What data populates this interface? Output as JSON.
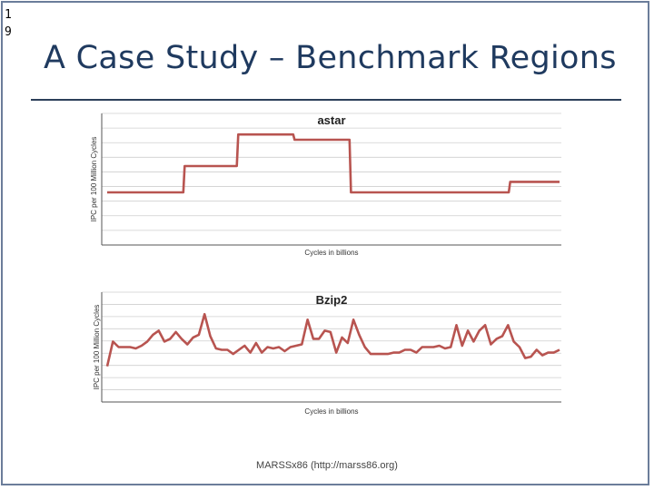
{
  "slide": {
    "number": "19",
    "title": "A Case Study – Benchmark Regions",
    "source": "MARSSx86 (http://marss86.org)"
  },
  "colors": {
    "series": "#b85450",
    "grid": "#cfcfcf",
    "axis": "#555555",
    "frame": "#6b7d9a",
    "title": "#1f3a5f"
  },
  "chart_data": [
    {
      "type": "line",
      "title": "astar",
      "xlabel": "Cycles in billions",
      "ylabel": "IPC per 100 Million Cycles",
      "grid": true,
      "legend": "none",
      "series": [
        {
          "values": [
            2.0,
            2.0,
            2.0,
            2.0,
            2.0,
            2.0,
            2.0,
            2.0,
            2.0,
            2.0,
            2.0,
            2.0,
            2.0,
            2.0,
            2.0,
            2.0,
            2.0,
            2.0,
            2.0,
            2.0,
            2.0,
            2.0,
            2.0,
            2.0,
            2.0,
            2.0,
            2.0,
            2.0,
            2.0,
            2.0,
            2.0,
            2.0,
            2.0,
            2.0,
            2.0,
            2.0,
            2.0,
            2.0,
            2.0,
            2.0,
            2.0,
            2.0,
            2.0,
            2.0,
            2.0,
            2.0,
            2.0,
            2.0,
            2.0,
            2.0,
            2.0,
            2.0,
            2.0,
            2.0,
            2.0,
            3.0,
            3.0,
            3.0,
            3.0,
            3.0,
            3.0,
            3.0,
            3.0,
            3.0,
            3.0,
            3.0,
            3.0,
            3.0,
            3.0,
            3.0,
            3.0,
            3.0,
            3.0,
            3.0,
            3.0,
            3.0,
            3.0,
            3.0,
            3.0,
            3.0,
            3.0,
            3.0,
            3.0,
            3.0,
            3.0,
            3.0,
            3.0,
            3.0,
            3.0,
            3.0,
            3.0,
            3.0,
            3.0,
            4.2,
            4.2,
            4.2,
            4.2,
            4.2,
            4.2,
            4.2,
            4.2,
            4.2,
            4.2,
            4.2,
            4.2,
            4.2,
            4.2,
            4.2,
            4.2,
            4.2,
            4.2,
            4.2,
            4.2,
            4.2,
            4.2,
            4.2,
            4.2,
            4.2,
            4.2,
            4.2,
            4.2,
            4.2,
            4.2,
            4.2,
            4.2,
            4.2,
            4.2,
            4.2,
            4.2,
            4.2,
            4.2,
            4.2,
            4.2,
            4.0,
            4.0,
            4.0,
            4.0,
            4.0,
            4.0,
            4.0,
            4.0,
            4.0,
            4.0,
            4.0,
            4.0,
            4.0,
            4.0,
            4.0,
            4.0,
            4.0,
            4.0,
            4.0,
            4.0,
            4.0,
            4.0,
            4.0,
            4.0,
            4.0,
            4.0,
            4.0,
            4.0,
            4.0,
            4.0,
            4.0,
            4.0,
            4.0,
            4.0,
            4.0,
            4.0,
            4.0,
            4.0,
            4.0,
            4.0,
            2.0,
            2.0,
            2.0,
            2.0,
            2.0,
            2.0,
            2.0,
            2.0,
            2.0,
            2.0,
            2.0,
            2.0,
            2.0,
            2.0,
            2.0,
            2.0,
            2.0,
            2.0,
            2.0,
            2.0,
            2.0,
            2.0,
            2.0,
            2.0,
            2.0,
            2.0,
            2.0,
            2.0,
            2.0,
            2.0,
            2.0,
            2.0,
            2.0,
            2.0,
            2.0,
            2.0,
            2.0,
            2.0,
            2.0,
            2.0,
            2.0,
            2.0,
            2.0,
            2.0,
            2.0,
            2.0,
            2.0,
            2.0,
            2.0,
            2.0,
            2.0,
            2.0,
            2.0,
            2.0,
            2.0,
            2.0,
            2.0,
            2.0,
            2.0,
            2.0,
            2.0,
            2.0,
            2.0,
            2.0,
            2.0,
            2.0,
            2.0,
            2.0,
            2.0,
            2.0,
            2.0,
            2.0,
            2.0,
            2.0,
            2.0,
            2.0,
            2.0,
            2.0,
            2.0,
            2.0,
            2.0,
            2.0,
            2.0,
            2.0,
            2.0,
            2.0,
            2.0,
            2.0,
            2.0,
            2.0,
            2.0,
            2.0,
            2.0,
            2.0,
            2.0,
            2.0,
            2.0,
            2.0,
            2.0,
            2.0,
            2.0,
            2.0,
            2.0,
            2.0,
            2.0,
            2.0,
            2.0,
            2.0,
            2.0,
            2.0,
            2.0,
            2.0,
            2.0,
            2.4,
            2.4,
            2.4,
            2.4,
            2.4,
            2.4,
            2.4,
            2.4,
            2.4,
            2.4,
            2.4,
            2.4,
            2.4,
            2.4,
            2.4,
            2.4,
            2.4,
            2.4,
            2.4,
            2.4,
            2.4,
            2.4,
            2.4,
            2.4,
            2.4,
            2.4,
            2.4,
            2.4,
            2.4,
            2.4,
            2.4,
            2.4,
            2.4,
            2.4,
            2.4,
            2.4
          ]
        }
      ]
    },
    {
      "type": "line",
      "title": "Bzip2",
      "xlabel": "Cycles in billions",
      "ylabel": "IPC per 100 Million Cycles",
      "grid": true,
      "legend": "none",
      "series": [
        {
          "values": [
            1.3,
            2.2,
            2.0,
            2.0,
            2.0,
            1.95,
            2.05,
            2.2,
            2.45,
            2.6,
            2.2,
            2.3,
            2.55,
            2.3,
            2.1,
            2.35,
            2.45,
            3.2,
            2.4,
            1.95,
            1.9,
            1.9,
            1.75,
            1.9,
            2.05,
            1.8,
            2.15,
            1.8,
            2.0,
            1.95,
            2.0,
            1.85,
            2.0,
            2.05,
            2.1,
            3.0,
            2.3,
            2.3,
            2.6,
            2.55,
            1.8,
            2.35,
            2.15,
            3.0,
            2.45,
            2.0,
            1.75,
            1.75,
            1.75,
            1.75,
            1.8,
            1.8,
            1.9,
            1.9,
            1.8,
            2.0,
            2.0,
            2.0,
            2.05,
            1.95,
            2.0,
            2.8,
            2.05,
            2.6,
            2.2,
            2.6,
            2.8,
            2.1,
            2.3,
            2.4,
            2.8,
            2.2,
            2.0,
            1.6,
            1.65,
            1.9,
            1.7,
            1.8,
            1.8,
            1.9
          ]
        }
      ]
    }
  ]
}
